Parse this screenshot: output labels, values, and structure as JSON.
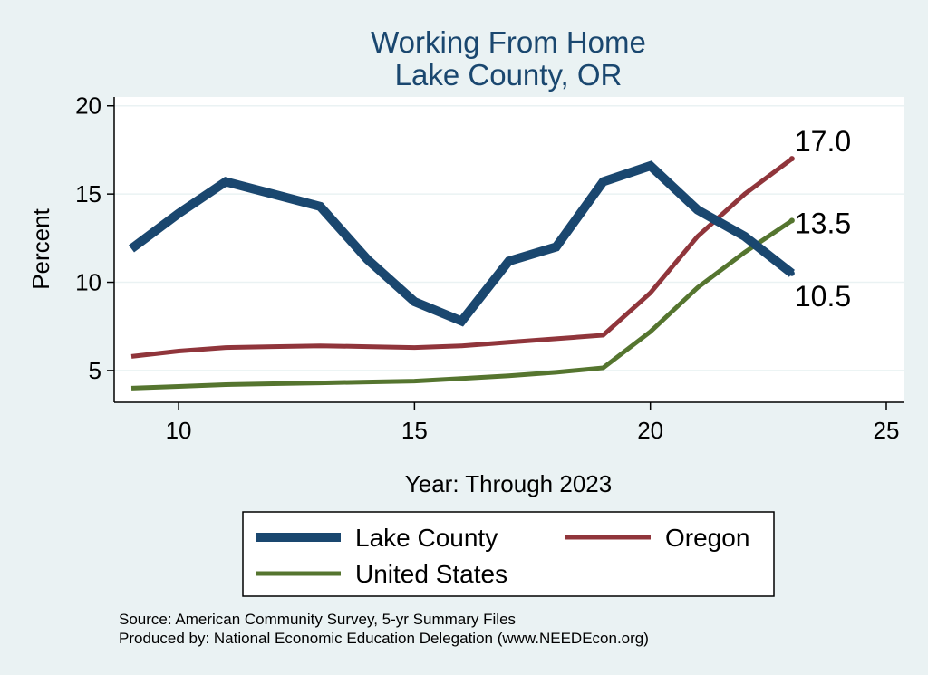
{
  "chart_data": {
    "type": "line",
    "title": [
      "Working From Home",
      "Lake County, OR"
    ],
    "xlabel": "Year: Through 2023",
    "ylabel": "Percent",
    "xlim": [
      9,
      25
    ],
    "ylim": [
      3.2,
      20.5
    ],
    "xticks": [
      10,
      15,
      20,
      25
    ],
    "yticks": [
      5,
      10,
      15,
      20
    ],
    "grid": "horizontal",
    "legend_position": "bottom",
    "series": [
      {
        "name": "Lake County",
        "color": "#1A476F",
        "x": [
          9,
          10,
          11,
          12,
          13,
          14,
          15,
          16,
          17,
          18,
          19,
          20,
          21,
          22,
          23
        ],
        "values": [
          11.9,
          13.9,
          15.7,
          15.0,
          14.3,
          11.3,
          8.9,
          7.8,
          11.2,
          12.0,
          15.7,
          16.6,
          14.1,
          12.6,
          10.5
        ],
        "end_label": "10.5"
      },
      {
        "name": "Oregon",
        "color": "#90353B",
        "x": [
          9,
          10,
          11,
          12,
          13,
          14,
          15,
          16,
          17,
          18,
          19,
          20,
          21,
          22,
          23
        ],
        "values": [
          5.8,
          6.1,
          6.3,
          6.35,
          6.4,
          6.35,
          6.3,
          6.4,
          6.6,
          6.8,
          7.0,
          9.4,
          12.6,
          15.0,
          17.0
        ],
        "end_label": "17.0"
      },
      {
        "name": "United States",
        "color": "#55752F",
        "x": [
          9,
          10,
          11,
          12,
          13,
          14,
          15,
          16,
          17,
          18,
          19,
          20,
          21,
          22,
          23
        ],
        "values": [
          4.0,
          4.1,
          4.2,
          4.25,
          4.3,
          4.35,
          4.4,
          4.55,
          4.7,
          4.9,
          5.15,
          7.2,
          9.7,
          11.7,
          13.5
        ],
        "end_label": "13.5"
      }
    ],
    "source_lines": [
      "Source: American Community Survey, 5-yr Summary Files",
      "Produced by: National Economic Education Delegation (www.NEEDEcon.org)"
    ]
  }
}
